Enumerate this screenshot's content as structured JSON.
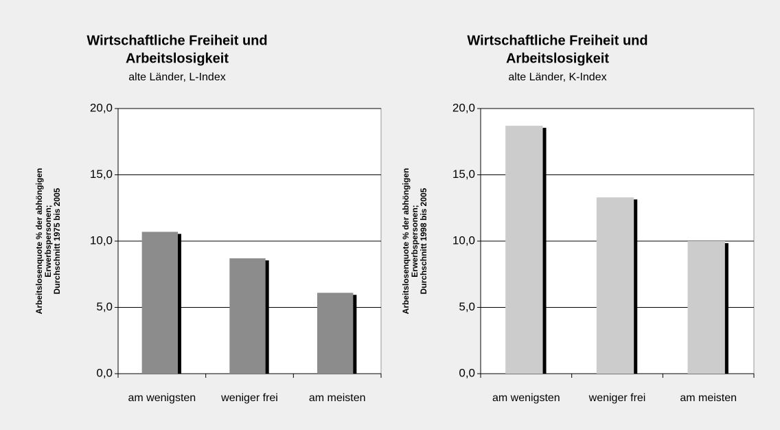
{
  "chart_data": [
    {
      "type": "bar",
      "title": [
        "Wirtschaftliche Freiheit und",
        "Arbeitslosigkeit"
      ],
      "subtitle": "alte Länder, L-Index",
      "y_label": [
        "Arbeitslosenquote % der abhöngigen",
        "Erwerbspersonen;",
        "Durchschnitt 1975 bis 2005"
      ],
      "categories": [
        "am wenigsten",
        "weniger frei",
        "am meisten"
      ],
      "values": [
        10.7,
        8.7,
        6.1
      ],
      "color": "#8c8c8c",
      "ylim": [
        0,
        20
      ],
      "yticks": [
        {
          "value": 0,
          "label": "0,0"
        },
        {
          "value": 5,
          "label": "5,0"
        },
        {
          "value": 10,
          "label": "10,0"
        },
        {
          "value": 15,
          "label": "15,0"
        },
        {
          "value": 20,
          "label": "20,0"
        }
      ],
      "grid": true
    },
    {
      "type": "bar",
      "title": [
        "Wirtschaftliche Freiheit und",
        "Arbeitslosigkeit"
      ],
      "subtitle": "alte Länder, K-Index",
      "y_label": [
        "Arbeitslosenquote % der abhöngigen",
        "Erwerbspersonen;",
        "Durchschnitt 1998 bis 2005"
      ],
      "categories": [
        "am wenigsten",
        "weniger frei",
        "am meisten"
      ],
      "values": [
        18.7,
        13.3,
        10.0
      ],
      "color": "#cccccc",
      "ylim": [
        0,
        20
      ],
      "yticks": [
        {
          "value": 0,
          "label": "0,0"
        },
        {
          "value": 5,
          "label": "5,0"
        },
        {
          "value": 10,
          "label": "10,0"
        },
        {
          "value": 15,
          "label": "15,0"
        },
        {
          "value": 20,
          "label": "20,0"
        }
      ],
      "grid": true
    }
  ]
}
